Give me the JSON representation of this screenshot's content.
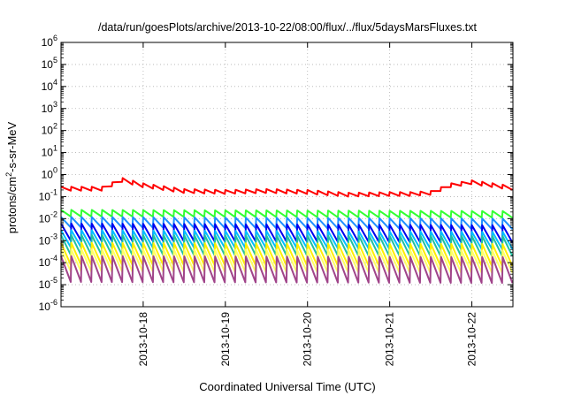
{
  "chart_data": {
    "type": "line",
    "title": "/data/run/goesPlots/archive/2013-10-22/08:00/flux/../flux/5daysMarsFluxes.txt",
    "xlabel": "Coordinated Universal Time (UTC)",
    "ylabel": {
      "base": "protons/cm",
      "sup": "2",
      "rest": "-s-sr-MeV"
    },
    "y_scale": "log",
    "ylim": [
      1e-06,
      1000000.0
    ],
    "y_ticks": [
      {
        "value": 1e-06,
        "base": "10",
        "exp": "-6"
      },
      {
        "value": 1e-05,
        "base": "10",
        "exp": "-5"
      },
      {
        "value": 0.0001,
        "base": "10",
        "exp": "-4"
      },
      {
        "value": 0.001,
        "base": "10",
        "exp": "-3"
      },
      {
        "value": 0.01,
        "base": "10",
        "exp": "-2"
      },
      {
        "value": 0.1,
        "base": "10",
        "exp": "-1"
      },
      {
        "value": 1.0,
        "base": "10",
        "exp": "0"
      },
      {
        "value": 10.0,
        "base": "10",
        "exp": "1"
      },
      {
        "value": 100.0,
        "base": "10",
        "exp": "2"
      },
      {
        "value": 1000.0,
        "base": "10",
        "exp": "3"
      },
      {
        "value": 10000.0,
        "base": "10",
        "exp": "4"
      },
      {
        "value": 100000.0,
        "base": "10",
        "exp": "5"
      },
      {
        "value": 1000000.0,
        "base": "10",
        "exp": "6"
      }
    ],
    "xlim": [
      "2013-10-17 00:00",
      "2013-10-22 12:00"
    ],
    "x_ticks": [
      {
        "value": "2013-10-18 00:00",
        "label": "2013-10-18"
      },
      {
        "value": "2013-10-19 00:00",
        "label": "2013-10-19"
      },
      {
        "value": "2013-10-20 00:00",
        "label": "2013-10-20"
      },
      {
        "value": "2013-10-21 00:00",
        "label": "2013-10-21"
      },
      {
        "value": "2013-10-22 00:00",
        "label": "2013-10-22"
      }
    ],
    "grid": true,
    "sawtooth_period_hours": 3,
    "series": [
      {
        "color": "#ff0000",
        "x": [
          "2013-10-17 00:00",
          "2013-10-17 12:00",
          "2013-10-17 18:00",
          "2013-10-18 00:00",
          "2013-10-18 12:00",
          "2013-10-19 00:00",
          "2013-10-19 12:00",
          "2013-10-20 00:00",
          "2013-10-20 12:00",
          "2013-10-21 00:00",
          "2013-10-21 06:00",
          "2013-10-21 12:00",
          "2013-10-21 18:00",
          "2013-10-22 00:00",
          "2013-10-22 12:00"
        ],
        "y": [
          0.28,
          0.28,
          0.7,
          0.4,
          0.22,
          0.2,
          0.22,
          0.2,
          0.15,
          0.16,
          0.16,
          0.18,
          0.4,
          0.55,
          0.3
        ],
        "sawtooth_drop": 1.5
      },
      {
        "color": "#33ff33",
        "x": [
          "2013-10-17 00:00",
          "2013-10-22 12:00"
        ],
        "y": [
          0.025,
          0.022
        ],
        "sawtooth_drop": 2
      },
      {
        "color": "#1e90ff",
        "x": [
          "2013-10-17 00:00",
          "2013-10-22 12:00"
        ],
        "y": [
          0.012,
          0.01
        ],
        "sawtooth_drop": 3
      },
      {
        "color": "#0000ee",
        "x": [
          "2013-10-17 00:00",
          "2013-10-22 12:00"
        ],
        "y": [
          0.006,
          0.005
        ],
        "sawtooth_drop": 6
      },
      {
        "color": "#00bfff",
        "x": [
          "2013-10-17 00:00",
          "2013-10-22 12:00"
        ],
        "y": [
          0.003,
          0.0025
        ],
        "sawtooth_drop": 6
      },
      {
        "color": "#20c0a0",
        "x": [
          "2013-10-17 00:00",
          "2013-10-22 12:00"
        ],
        "y": [
          0.0018,
          0.0016
        ],
        "sawtooth_drop": 8
      },
      {
        "color": "#ffee00",
        "x": [
          "2013-10-17 00:00",
          "2013-10-22 12:00"
        ],
        "y": [
          0.0008,
          0.0007
        ],
        "sawtooth_drop": 10
      },
      {
        "color": "#ffff66",
        "x": [
          "2013-10-17 00:00",
          "2013-10-22 12:00"
        ],
        "y": [
          0.0004,
          0.00035
        ],
        "sawtooth_drop": 10
      },
      {
        "color": "#a0448a",
        "x": [
          "2013-10-17 00:00",
          "2013-10-22 12:00"
        ],
        "y": [
          0.0002,
          0.00018
        ],
        "sawtooth_drop": 15
      }
    ]
  }
}
